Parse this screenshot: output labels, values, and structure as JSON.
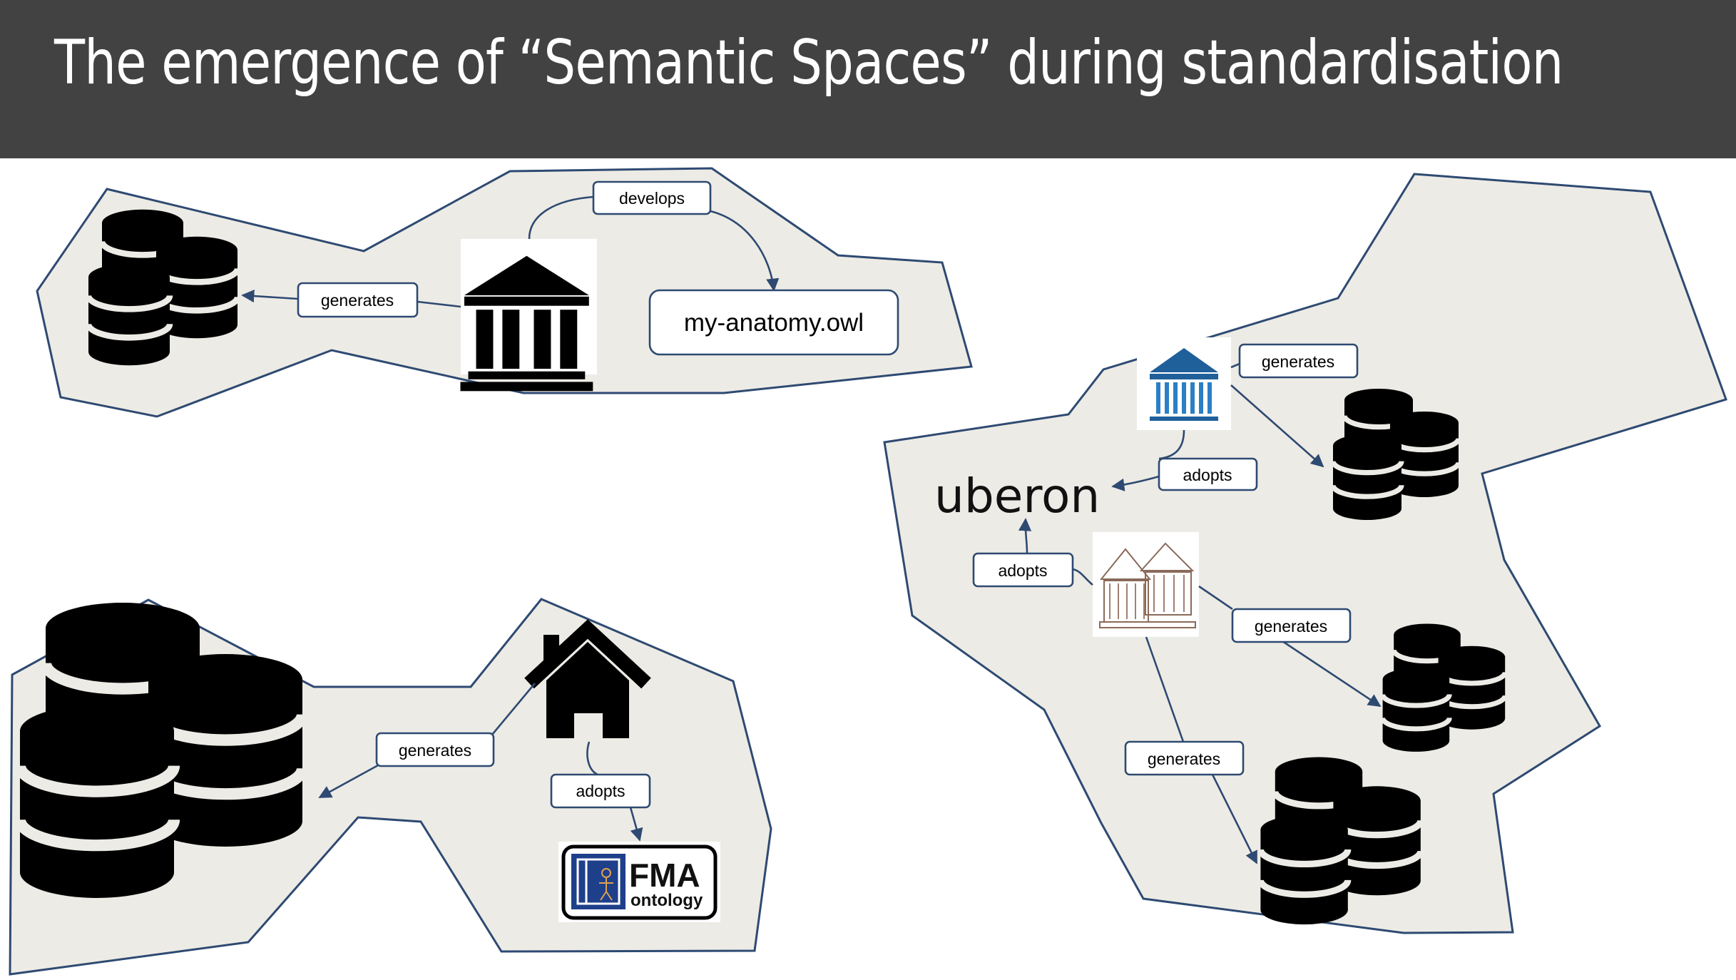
{
  "title": "The emergence of “Semantic Spaces” during standardisation",
  "labels": {
    "develops": "develops",
    "generates": "generates",
    "adopts": "adopts",
    "owl_file": "my-anatomy.owl",
    "uberon": "uberon",
    "fma_main": "FMA",
    "fma_sub": "ontology"
  },
  "icons": {
    "institution": "institution-icon",
    "database": "database-stack-icon",
    "home": "home-icon",
    "uberon_logo": "uberon-logo-icon",
    "fma_logo": "fma-ontology-logo-icon"
  },
  "colors": {
    "title_bar": "#424242",
    "region_fill": "#edebe5",
    "edge": "#2e4a72",
    "institution_blue": "#1f5f9a"
  }
}
